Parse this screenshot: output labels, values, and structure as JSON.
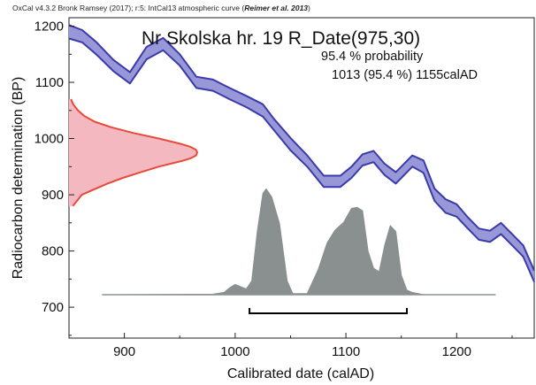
{
  "header": {
    "software_prefix": "OxCal v4.3.2 Bronk Ramsey (2017); r:5: IntCal13 atmospheric curve (",
    "citation": "Reimer et al. 2013",
    "software_suffix": ")"
  },
  "chart_data": {
    "type": "area",
    "title": "Nr Skolska hr. 19 R_Date(975,30)",
    "probability_label": "95.4 % probability",
    "range_label": "1013 (95.4 %) 1155calAD",
    "xlabel": "Calibrated date (calAD)",
    "ylabel": "Radiocarbon determination (BP)",
    "xlim": [
      850,
      1270
    ],
    "ylim": [
      645,
      1215
    ],
    "x_ticks": [
      900,
      1000,
      1100,
      1200
    ],
    "y_ticks": [
      700,
      800,
      900,
      1000,
      1100,
      1200
    ],
    "grid": false,
    "radiocarbon_date": {
      "mean": 975,
      "sigma": 30
    },
    "hpd_range_95": {
      "from": 1013,
      "to": 1155,
      "percent": 95.4
    },
    "colors": {
      "calibration_curve_fill": "#9898d8",
      "calibration_curve_line": "#3a3aaa",
      "measurement_fill": "#f4b8c0",
      "measurement_line": "#e84a3a",
      "posterior_fill": "#8a8f8f",
      "baseline": "#9a9a9a",
      "range_bar": "#000000"
    },
    "calibration_curve": {
      "x": [
        850,
        862,
        875,
        890,
        905,
        920,
        935,
        950,
        965,
        980,
        995,
        1010,
        1025,
        1035,
        1050,
        1065,
        1080,
        1095,
        1105,
        1115,
        1125,
        1135,
        1145,
        1160,
        1170,
        1180,
        1190,
        1200,
        1210,
        1220,
        1230,
        1240,
        1250,
        1260,
        1270
      ],
      "y": [
        1190,
        1182,
        1160,
        1130,
        1108,
        1152,
        1168,
        1140,
        1100,
        1095,
        1080,
        1066,
        1050,
        1025,
        990,
        960,
        924,
        924,
        940,
        962,
        968,
        945,
        930,
        960,
        950,
        900,
        880,
        872,
        850,
        830,
        826,
        840,
        820,
        800,
        755
      ],
      "half_width": [
        12,
        11,
        11,
        10,
        10,
        11,
        11,
        10,
        10,
        10,
        10,
        10,
        11,
        10,
        11,
        10,
        10,
        10,
        10,
        10,
        10,
        10,
        10,
        10,
        11,
        11,
        12,
        11,
        10,
        10,
        10,
        10,
        10,
        10,
        10
      ]
    },
    "measurement_distribution": {
      "y": [
        940,
        950,
        960,
        965,
        970,
        975,
        980,
        985,
        990,
        1000,
        1010,
        1020,
        1030,
        1040,
        1050,
        1060,
        1070,
        900,
        910,
        920,
        930,
        880
      ],
      "density": [
        0.56,
        0.7,
        0.88,
        0.95,
        0.99,
        1.0,
        0.99,
        0.95,
        0.88,
        0.7,
        0.5,
        0.33,
        0.2,
        0.12,
        0.07,
        0.035,
        0.015,
        0.1,
        0.2,
        0.3,
        0.42,
        0.03
      ]
    },
    "posterior": {
      "x": [
        880,
        980,
        990,
        995,
        1000,
        1005,
        1010,
        1015,
        1020,
        1025,
        1028,
        1033,
        1040,
        1047,
        1052,
        1058,
        1065,
        1075,
        1083,
        1090,
        1098,
        1105,
        1110,
        1115,
        1120,
        1125,
        1130,
        1135,
        1140,
        1145,
        1150,
        1155,
        1160,
        1170,
        1235
      ],
      "density": [
        0,
        0.005,
        0.02,
        0.06,
        0.09,
        0.07,
        0.05,
        0.12,
        0.55,
        0.88,
        0.92,
        0.85,
        0.62,
        0.12,
        0.01,
        0.01,
        0.01,
        0.22,
        0.45,
        0.56,
        0.63,
        0.75,
        0.76,
        0.73,
        0.38,
        0.23,
        0.2,
        0.43,
        0.6,
        0.55,
        0.17,
        0.04,
        0.02,
        0.0,
        0
      ]
    }
  }
}
